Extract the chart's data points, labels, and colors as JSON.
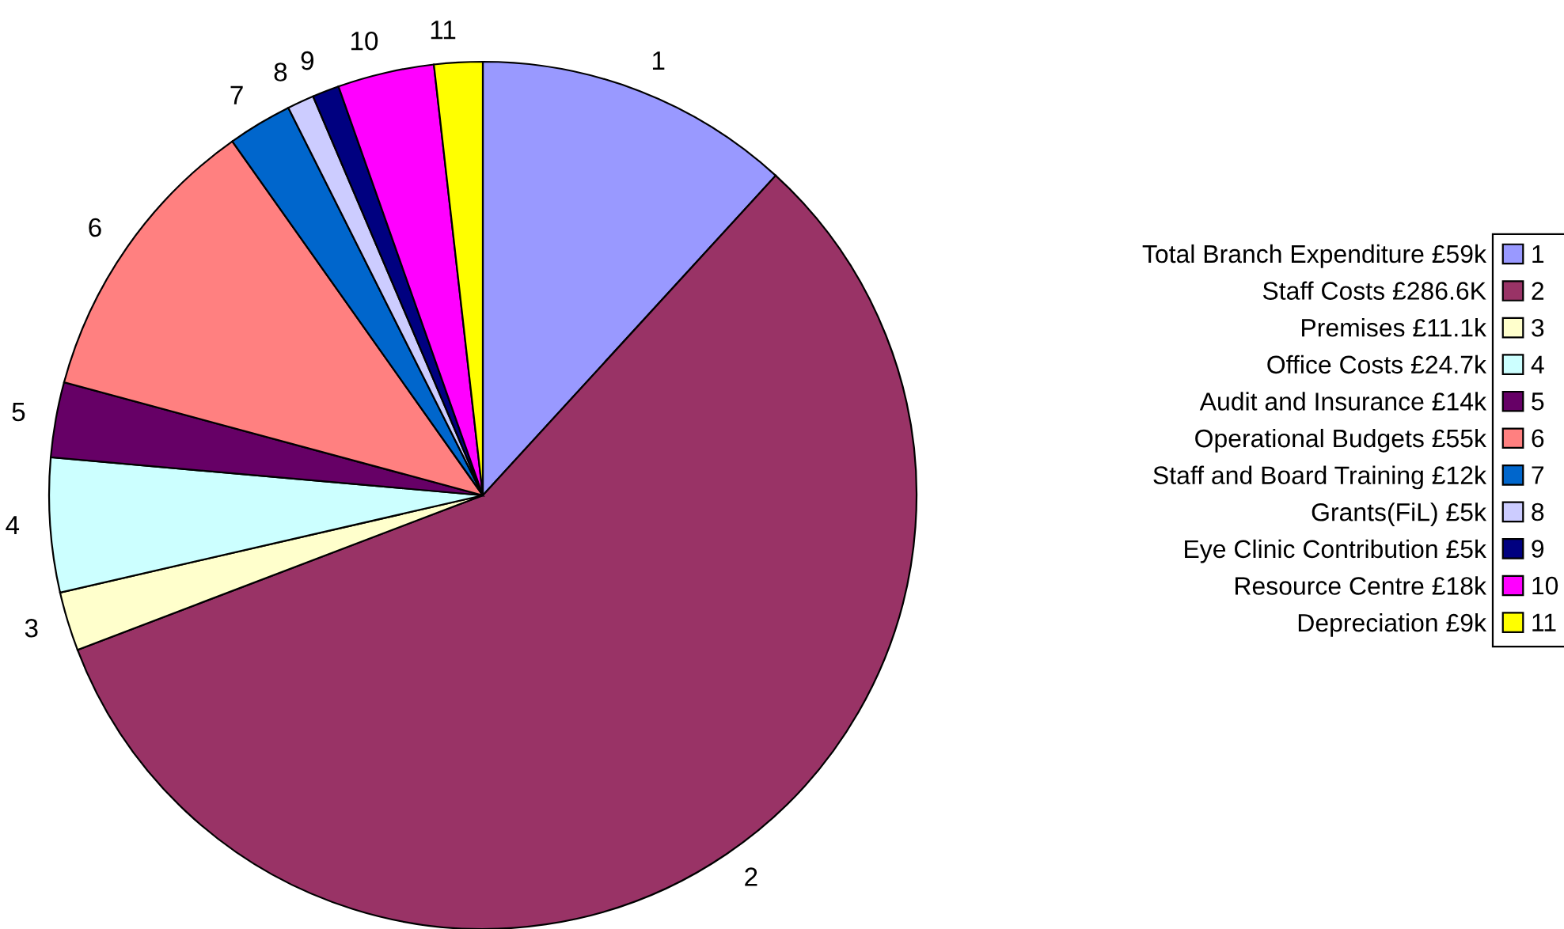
{
  "chart_data": {
    "type": "pie",
    "categories": [
      "1",
      "2",
      "3",
      "4",
      "5",
      "6",
      "7",
      "8",
      "9",
      "10",
      "11"
    ],
    "values": [
      11.8,
      57.4,
      2.2,
      5.0,
      2.8,
      11.0,
      2.4,
      1.0,
      1.0,
      3.6,
      1.8
    ],
    "colors": [
      "#9999ff",
      "#993366",
      "#ffffcc",
      "#ccffff",
      "#660066",
      "#ff8080",
      "#0066cc",
      "#ccccff",
      "#000080",
      "#ff00ff",
      "#ffff00"
    ],
    "legend": "right",
    "annotations": [
      "Total Branch Expenditure £59k",
      "Staff Costs £286.6K",
      "Premises £11.1k",
      "Office Costs £24.7k",
      "Audit and Insurance £14k",
      "Operational Budgets £55k",
      "Staff and Board Training £12k",
      "Grants(FiL) £5k",
      "Eye Clinic Contribution £5k",
      "Resource Centre £18k",
      "Depreciation £9k"
    ]
  }
}
